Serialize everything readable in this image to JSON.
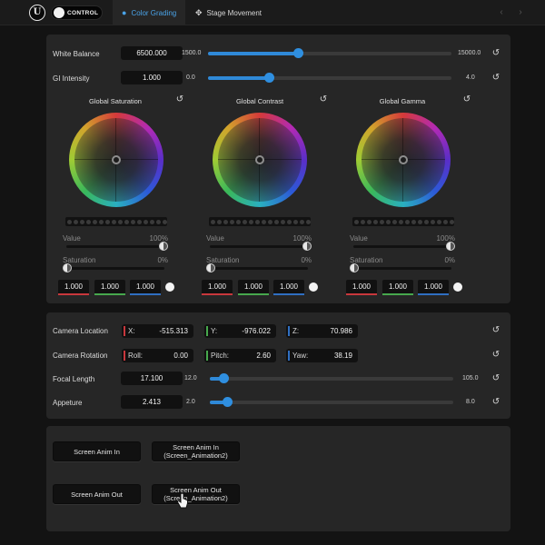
{
  "header": {
    "logo_letter": "U",
    "app_name": "CONTROL",
    "tabs": [
      {
        "label": "Color Grading",
        "icon": "palette-icon",
        "active": true
      },
      {
        "label": "Stage Movement",
        "icon": "move-arrows-icon",
        "active": false
      }
    ]
  },
  "color_panel": {
    "white_balance": {
      "label": "White Balance",
      "value": "6500.000",
      "min": "1500.0",
      "max": "15000.0",
      "fraction": 0.37
    },
    "gi_intensity": {
      "label": "GI Intensity",
      "value": "1.000",
      "min": "0.0",
      "max": "4.0",
      "fraction": 0.25
    },
    "wheels": [
      {
        "title": "Global Saturation",
        "value_label": "Value",
        "value_pct": "100%",
        "sat_label": "Saturation",
        "sat_pct": "0%",
        "r": "1.000",
        "g": "1.000",
        "b": "1.000"
      },
      {
        "title": "Global Contrast",
        "value_label": "Value",
        "value_pct": "100%",
        "sat_label": "Saturation",
        "sat_pct": "0%",
        "r": "1.000",
        "g": "1.000",
        "b": "1.000"
      },
      {
        "title": "Global Gamma",
        "value_label": "Value",
        "value_pct": "100%",
        "sat_label": "Saturation",
        "sat_pct": "0%",
        "r": "1.000",
        "g": "1.000",
        "b": "1.000"
      }
    ]
  },
  "camera_panel": {
    "location": {
      "label": "Camera Location",
      "x_axis": "X:",
      "x": "-515.313",
      "y_axis": "Y:",
      "y": "-976.022",
      "z_axis": "Z:",
      "z": "70.986"
    },
    "rotation": {
      "label": "Camera Rotation",
      "roll_axis": "Roll:",
      "roll": "0.00",
      "pitch_axis": "Pitch:",
      "pitch": "2.60",
      "yaw_axis": "Yaw:",
      "yaw": "38.19"
    },
    "focal_length": {
      "label": "Focal Length",
      "value": "17.100",
      "min": "12.0",
      "max": "105.0",
      "fraction": 0.055
    },
    "aperture": {
      "label": "Appeture",
      "value": "2.413",
      "min": "2.0",
      "max": "8.0",
      "fraction": 0.07
    }
  },
  "anim_panel": {
    "buttons": [
      {
        "line1": "Screen Anim In",
        "line2": ""
      },
      {
        "line1": "Screen Anim In",
        "line2": "(Screen_Animation2)"
      },
      {
        "line1": "Screen Anim Out",
        "line2": ""
      },
      {
        "line1": "Screen Anim Out",
        "line2": "(Screen_Animation2)"
      }
    ]
  },
  "colors": {
    "accent": "#2f89d8",
    "red_channel": "#c8373c",
    "green_channel": "#47a84d",
    "blue_channel": "#2f6fc2"
  }
}
